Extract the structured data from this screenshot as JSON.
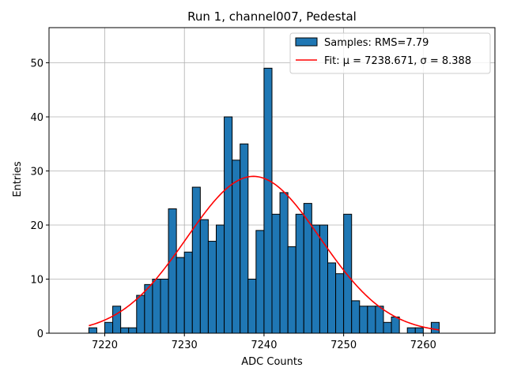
{
  "chart_data": {
    "type": "bar",
    "title": "Run 1, channel007, Pedestal",
    "xlabel": "ADC Counts",
    "ylabel": "Entries",
    "xlim": [
      7213,
      7269
    ],
    "ylim": [
      0,
      56.5
    ],
    "grid": true,
    "bin_width": 1,
    "xticks": [
      7220,
      7230,
      7240,
      7250,
      7260
    ],
    "yticks": [
      0,
      10,
      20,
      30,
      40,
      50
    ],
    "bins": [
      {
        "x": 7218,
        "value": 1
      },
      {
        "x": 7219,
        "value": 0
      },
      {
        "x": 7220,
        "value": 2
      },
      {
        "x": 7221,
        "value": 5
      },
      {
        "x": 7222,
        "value": 1
      },
      {
        "x": 7223,
        "value": 1
      },
      {
        "x": 7224,
        "value": 7
      },
      {
        "x": 7225,
        "value": 9
      },
      {
        "x": 7226,
        "value": 10
      },
      {
        "x": 7227,
        "value": 10
      },
      {
        "x": 7228,
        "value": 23
      },
      {
        "x": 7229,
        "value": 14
      },
      {
        "x": 7230,
        "value": 15
      },
      {
        "x": 7231,
        "value": 27
      },
      {
        "x": 7232,
        "value": 21
      },
      {
        "x": 7233,
        "value": 17
      },
      {
        "x": 7234,
        "value": 20
      },
      {
        "x": 7235,
        "value": 40
      },
      {
        "x": 7236,
        "value": 32
      },
      {
        "x": 7237,
        "value": 35
      },
      {
        "x": 7238,
        "value": 10
      },
      {
        "x": 7239,
        "value": 19
      },
      {
        "x": 7240,
        "value": 49
      },
      {
        "x": 7241,
        "value": 22
      },
      {
        "x": 7242,
        "value": 26
      },
      {
        "x": 7243,
        "value": 16
      },
      {
        "x": 7244,
        "value": 22
      },
      {
        "x": 7245,
        "value": 24
      },
      {
        "x": 7246,
        "value": 20
      },
      {
        "x": 7247,
        "value": 20
      },
      {
        "x": 7248,
        "value": 13
      },
      {
        "x": 7249,
        "value": 11
      },
      {
        "x": 7250,
        "value": 22
      },
      {
        "x": 7251,
        "value": 6
      },
      {
        "x": 7252,
        "value": 5
      },
      {
        "x": 7253,
        "value": 5
      },
      {
        "x": 7254,
        "value": 5
      },
      {
        "x": 7255,
        "value": 2
      },
      {
        "x": 7256,
        "value": 3
      },
      {
        "x": 7257,
        "value": 0
      },
      {
        "x": 7258,
        "value": 1
      },
      {
        "x": 7259,
        "value": 1
      },
      {
        "x": 7260,
        "value": 0
      },
      {
        "x": 7261,
        "value": 2
      }
    ],
    "fit": {
      "type": "gaussian",
      "mu": 7238.671,
      "sigma": 8.388,
      "amplitude": 29,
      "x_range": [
        7218,
        7262
      ]
    },
    "legend": {
      "position": "top-right",
      "entries": [
        {
          "label": "Samples: RMS=7.79",
          "kind": "histogram"
        },
        {
          "label": "Fit: μ = 7238.671, σ = 8.388",
          "kind": "line"
        }
      ]
    },
    "colors": {
      "bar_fill": "#1f77b4",
      "bar_edge": "#000000",
      "fit_line": "#ff0000",
      "grid": "#b0b0b0"
    }
  }
}
